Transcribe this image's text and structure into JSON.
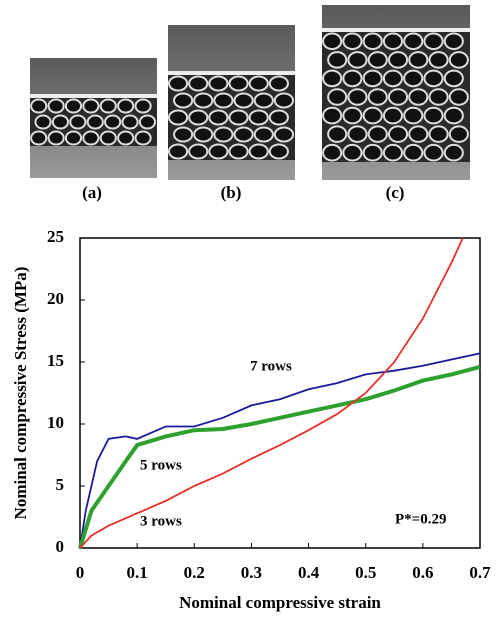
{
  "panels": [
    "(a)",
    "(b)",
    "(c)"
  ],
  "chart_data": {
    "type": "line",
    "xlabel": "Nominal compressive strain",
    "ylabel": "Nominal compressive Stress (MPa)",
    "xlim": [
      0,
      0.7
    ],
    "ylim": [
      0,
      25
    ],
    "xticks": [
      0,
      0.1,
      0.2,
      0.3,
      0.4,
      0.5,
      0.6,
      0.7
    ],
    "yticks": [
      0,
      5,
      10,
      15,
      20,
      25
    ],
    "annotations": [
      "7 rows",
      "5 rows",
      "3 rows",
      "P*=0.29"
    ],
    "series": [
      {
        "name": "7 rows",
        "color": "#1a1a9a",
        "x": [
          0,
          0.01,
          0.03,
          0.05,
          0.08,
          0.1,
          0.15,
          0.2,
          0.25,
          0.3,
          0.35,
          0.4,
          0.45,
          0.5,
          0.55,
          0.6,
          0.65,
          0.7
        ],
        "values": [
          0,
          3,
          7,
          8.8,
          9,
          8.8,
          9.8,
          9.8,
          10.5,
          11.5,
          12,
          12.8,
          13.3,
          14,
          14.3,
          14.7,
          15.2,
          15.7
        ]
      },
      {
        "name": "5 rows",
        "color": "#2ea02e",
        "x": [
          0,
          0.02,
          0.05,
          0.08,
          0.1,
          0.15,
          0.2,
          0.25,
          0.3,
          0.35,
          0.4,
          0.45,
          0.5,
          0.55,
          0.6,
          0.65,
          0.7
        ],
        "values": [
          0,
          3,
          5,
          7,
          8.3,
          9,
          9.5,
          9.6,
          10,
          10.5,
          11,
          11.5,
          12,
          12.7,
          13.5,
          14,
          14.6
        ]
      },
      {
        "name": "3 rows",
        "color": "#e8302a",
        "x": [
          0,
          0.02,
          0.05,
          0.1,
          0.15,
          0.2,
          0.25,
          0.3,
          0.35,
          0.4,
          0.45,
          0.5,
          0.55,
          0.6,
          0.65,
          0.67
        ],
        "values": [
          0,
          1,
          1.8,
          2.8,
          3.8,
          5,
          6,
          7.2,
          8.3,
          9.5,
          10.8,
          12.5,
          15,
          18.5,
          23,
          25
        ]
      }
    ]
  }
}
